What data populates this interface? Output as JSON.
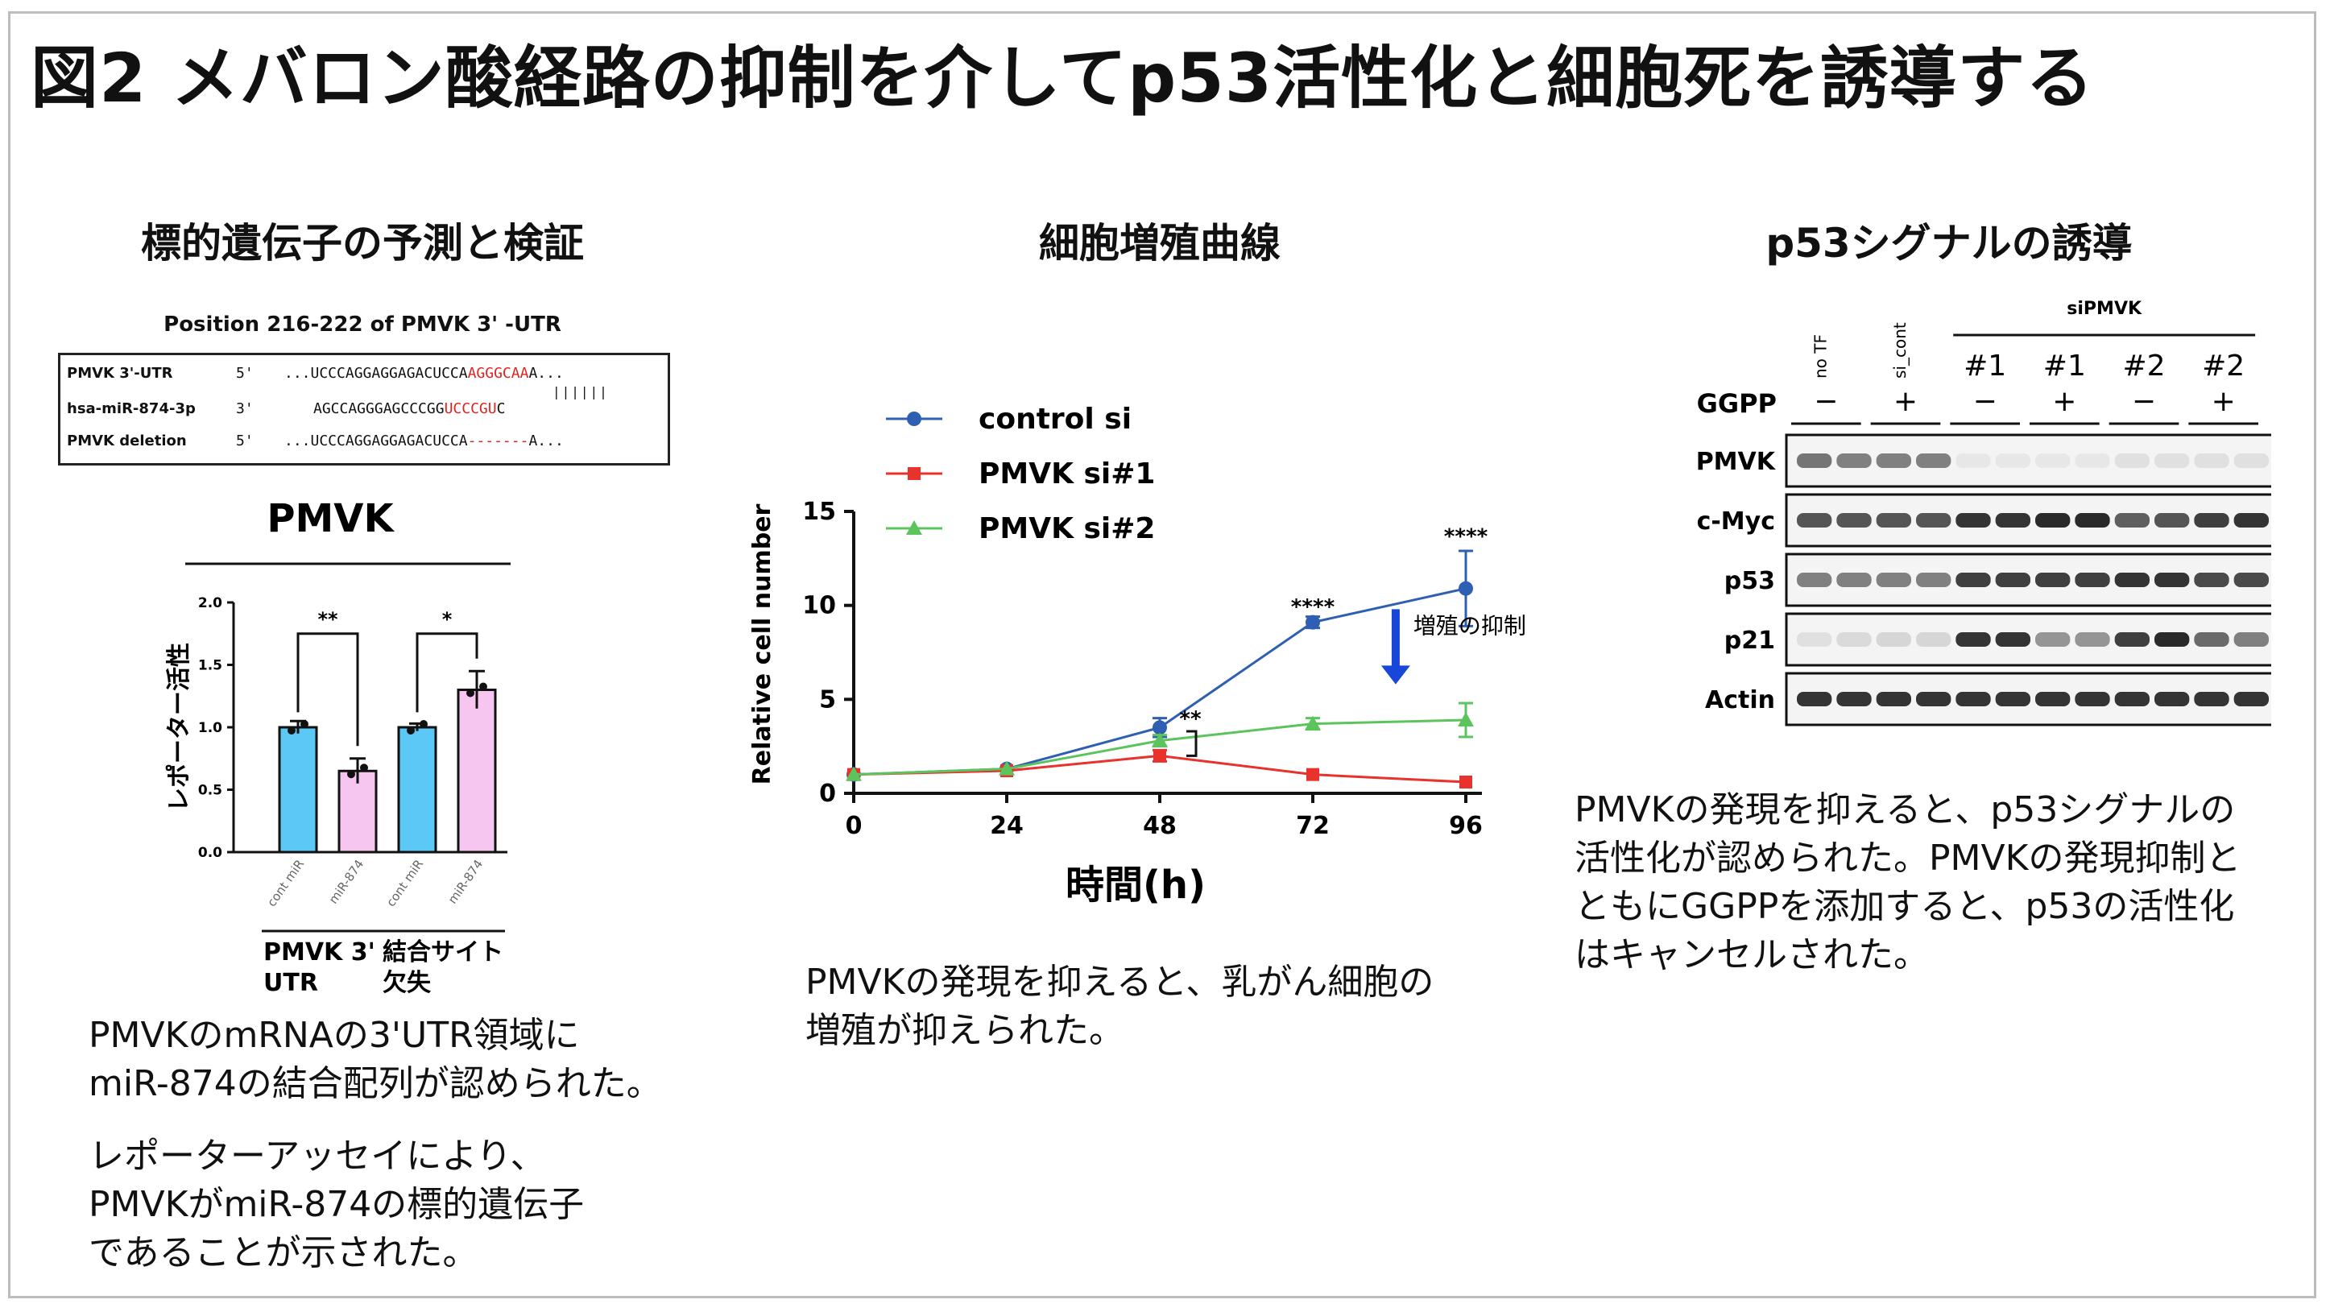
{
  "title": "図2 メバロン酸経路の抑制を介してp53活性化と細胞死を誘導する",
  "panel_left": {
    "heading": "標的遺伝子の予測と検証",
    "sequence": {
      "header": "Position 216-222 of PMVK 3' -UTR",
      "rows": [
        {
          "label": "PMVK 3'-UTR",
          "prime": "5'",
          "seq": "...UCCCAGGAGGAGACUCCA",
          "highlight": "AGGGCAA",
          "tail": "A..."
        },
        {
          "label": "hsa-miR-874-3p",
          "prime": "3'",
          "seq": "AGCCAGGGAGCCCGG",
          "highlight": "UCCCGU",
          "tail": "C"
        },
        {
          "label": "PMVK deletion",
          "prime": "5'",
          "seq": "...UCCCAGGAGGAGACUCCA",
          "highlight": "-------",
          "tail": "A..."
        }
      ]
    },
    "captions": [
      "PMVKのmRNAの3'UTR領域に",
      "miR-874の結合配列が認められた。",
      "レポーターアッセイにより、",
      "PMVKがmiR-874の標的遺伝子",
      "であることが示された。"
    ]
  },
  "panel_middle": {
    "heading": "細胞増殖曲線",
    "annotation": "増殖の抑制",
    "captions": [
      "PMVKの発現を抑えると、乳がん細胞の",
      "増殖が抑えられた。"
    ]
  },
  "panel_right": {
    "heading": "p53シグナルの誘導",
    "lanes_header": {
      "no_tf": "no TF",
      "si_cont": "si_cont",
      "si_pmvk": "siPMVK"
    },
    "lane_numbers": [
      "#1",
      "#1",
      "#2",
      "#2"
    ],
    "ggpp_label": "GGPP",
    "ggpp_signs": [
      "−",
      "+",
      "−",
      "+",
      "−",
      "+"
    ],
    "bands": [
      "PMVK",
      "c-Myc",
      "p53",
      "p21",
      "Actin"
    ],
    "band_intensity": [
      [
        0.55,
        0.5,
        0.5,
        0.5,
        0.02,
        0.02,
        0.02,
        0.02,
        0.05,
        0.05,
        0.05,
        0.05
      ],
      [
        0.7,
        0.7,
        0.7,
        0.7,
        0.85,
        0.85,
        0.9,
        0.9,
        0.65,
        0.7,
        0.8,
        0.85
      ],
      [
        0.5,
        0.5,
        0.5,
        0.5,
        0.8,
        0.8,
        0.8,
        0.8,
        0.85,
        0.85,
        0.75,
        0.75
      ],
      [
        0.05,
        0.08,
        0.1,
        0.1,
        0.85,
        0.85,
        0.4,
        0.4,
        0.8,
        0.9,
        0.6,
        0.5
      ],
      [
        0.85,
        0.85,
        0.85,
        0.85,
        0.85,
        0.85,
        0.85,
        0.85,
        0.85,
        0.85,
        0.85,
        0.85
      ]
    ],
    "captions": [
      "PMVKの発現を抑えると、p53シグナルの",
      "活性化が認められた。PMVKの発現抑制と",
      "ともにGGPPを添加すると、p53の活性化",
      "はキャンセルされた。"
    ]
  },
  "chart_data": [
    {
      "type": "bar",
      "title": "PMVK",
      "ylabel": "レポーター活性",
      "ylim": [
        0,
        2.0
      ],
      "yticks": [
        "0.0",
        "0.5",
        "1.0",
        "1.5",
        "2.0"
      ],
      "categories": [
        "cont miR",
        "miR-874",
        "cont miR",
        "miR-874"
      ],
      "values": [
        1.0,
        0.65,
        1.0,
        1.3
      ],
      "errors": [
        0.05,
        0.1,
        0.03,
        0.15
      ],
      "colors": [
        "#5bc8f5",
        "#f7c6f0",
        "#5bc8f5",
        "#f7c6f0"
      ],
      "groups": [
        "PMVK 3'\nUTR",
        "結合サイト\n欠失"
      ],
      "significance": [
        "**",
        "*"
      ]
    },
    {
      "type": "line",
      "xlabel": "時間(h)",
      "ylabel": "Relative cell number",
      "xlim": [
        0,
        96
      ],
      "ylim": [
        0,
        15
      ],
      "xticks": [
        "0",
        "24",
        "48",
        "72",
        "96"
      ],
      "yticks": [
        "0",
        "5",
        "10",
        "15"
      ],
      "x": [
        0,
        24,
        48,
        72,
        96
      ],
      "legend": "top-left",
      "series": [
        {
          "name": "control si",
          "color": "#2f5fb3",
          "marker": "circle",
          "values": [
            1.0,
            1.3,
            3.5,
            9.1,
            10.9
          ],
          "errors": [
            0.1,
            0.1,
            0.5,
            0.3,
            2.0
          ]
        },
        {
          "name": "PMVK si#1",
          "color": "#e8322b",
          "marker": "square",
          "values": [
            1.0,
            1.2,
            2.0,
            1.0,
            0.6
          ],
          "errors": [
            0.05,
            0.1,
            0.3,
            0.1,
            0.1
          ]
        },
        {
          "name": "PMVK si#2",
          "color": "#5cc45c",
          "marker": "triangle",
          "values": [
            1.0,
            1.3,
            2.8,
            3.7,
            3.9
          ],
          "errors": [
            0.05,
            0.1,
            0.3,
            0.3,
            0.9
          ]
        }
      ],
      "annotations": [
        {
          "x": 72,
          "text": "****"
        },
        {
          "x": 96,
          "text": "****"
        },
        {
          "x": 48,
          "text": "**"
        }
      ]
    }
  ]
}
